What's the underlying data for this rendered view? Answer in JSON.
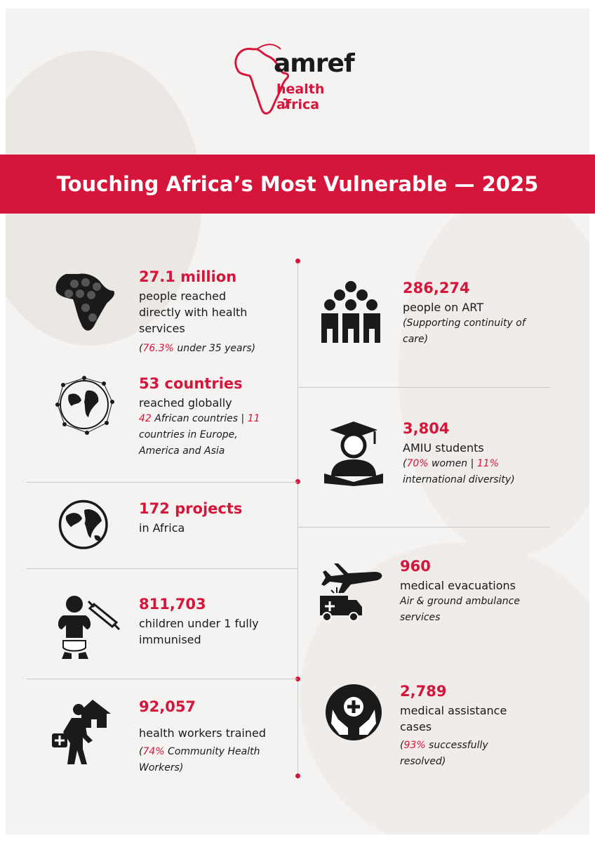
{
  "brand": {
    "name_line1": "amref",
    "name_line2": "health africa"
  },
  "banner": {
    "title": "Touching Africa’s Most Vulnerable — 2025"
  },
  "colors": {
    "accent": "#d6153a",
    "text": "#1a1a1a",
    "background": "#f4f3f1",
    "divider": "#c8c8c8"
  },
  "stats_left": [
    {
      "icon": "africa-people-icon",
      "headline": "27.1 million",
      "desc": "people reached directly with health services",
      "note_hl": "76.3%",
      "note": " under 35 years)"
    },
    {
      "icon": "network-globe-icon",
      "headline": "53 countries",
      "desc": "reached globally",
      "note_hl1": "42",
      "note1": " African countries | ",
      "note_hl2": "11",
      "note2": " countries in Europe, America and Asia"
    },
    {
      "icon": "globe-icon",
      "headline": "172 projects",
      "desc": "in Africa"
    },
    {
      "icon": "baby-syringe-icon",
      "headline": "811,703",
      "desc": "children under 1 fully immunised"
    },
    {
      "icon": "health-worker-icon",
      "headline": "92,057",
      "desc": "health workers trained",
      "note_hl": "74%",
      "note": " Community Health Workers)"
    }
  ],
  "stats_right": [
    {
      "icon": "people-group-icon",
      "headline": "286,274",
      "desc": "people on ART",
      "note": "(Supporting continuity of care)"
    },
    {
      "icon": "graduate-icon",
      "headline": "3,804",
      "desc": "AMIU students",
      "note_hl1": "70%",
      "note1": " women | ",
      "note_hl2": "11%",
      "note2": " international diversity)"
    },
    {
      "icon": "plane-ambulance-icon",
      "headline": "960",
      "desc": "medical evacuations",
      "note": "Air & ground ambulance services"
    },
    {
      "icon": "hands-cross-icon",
      "headline": "2,789",
      "desc": "medical assistance cases",
      "note_hl": "93%",
      "note": " successfully resolved)"
    }
  ]
}
